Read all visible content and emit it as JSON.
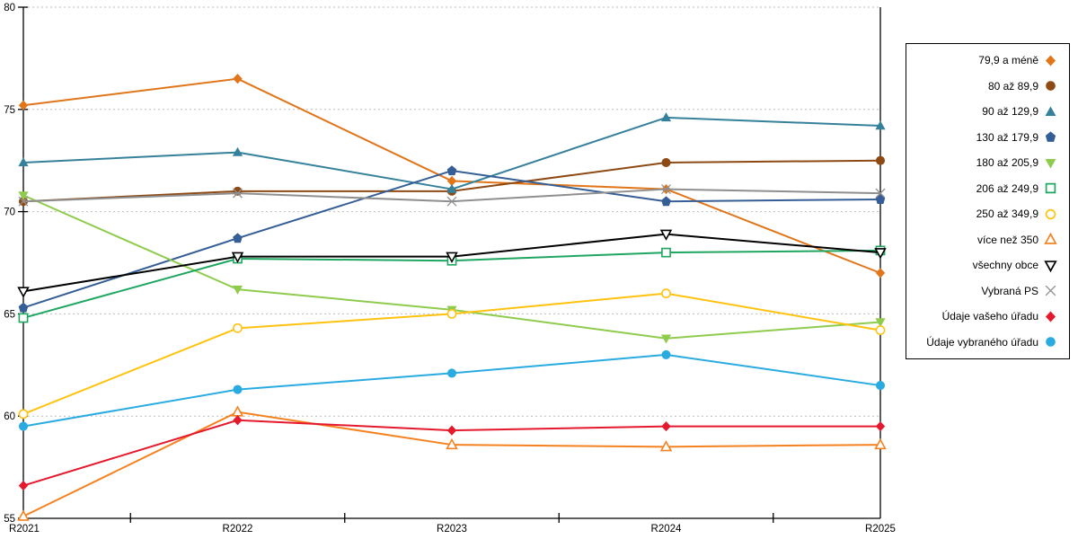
{
  "chart_data": {
    "type": "line",
    "title": "",
    "xlabel": "",
    "ylabel": "",
    "categories": [
      "R2021",
      "R2022",
      "R2023",
      "R2024",
      "R2025"
    ],
    "ylim": [
      55,
      80
    ],
    "yticks": [
      55,
      60,
      65,
      70,
      75,
      80
    ],
    "grid": "horizontal-dashed",
    "gridline_color": "#bdbdbd",
    "axis_color": "#000000",
    "legend_position": "right",
    "series": [
      {
        "name": "79,9 a méně",
        "color": "#e0751a",
        "marker": "diamond",
        "values": [
          75.2,
          76.5,
          71.5,
          71.1,
          67.0
        ]
      },
      {
        "name": "80 až 89,9",
        "color": "#8e4a15",
        "marker": "circle",
        "values": [
          70.5,
          71.0,
          71.0,
          72.4,
          72.5
        ]
      },
      {
        "name": "90 až 129,9",
        "color": "#35819b",
        "marker": "triangle-up",
        "values": [
          72.4,
          72.9,
          71.1,
          74.6,
          74.2
        ]
      },
      {
        "name": "130 až 179,9",
        "color": "#355e96",
        "marker": "pentagon",
        "values": [
          65.3,
          68.7,
          72.0,
          70.5,
          70.6
        ]
      },
      {
        "name": "180 až 205,9",
        "color": "#8fcb4c",
        "marker": "triangle-down",
        "values": [
          70.8,
          66.2,
          65.2,
          63.8,
          64.6
        ]
      },
      {
        "name": "206 až 249,9",
        "color": "#1fa661",
        "marker": "square-open",
        "values": [
          64.8,
          67.7,
          67.6,
          68.0,
          68.1
        ]
      },
      {
        "name": "250 až 349,9",
        "color": "#ffc20e",
        "marker": "circle-open",
        "values": [
          60.1,
          64.3,
          65.0,
          66.0,
          64.2
        ]
      },
      {
        "name": "více než 350",
        "color": "#f58220",
        "marker": "triangle-up-open",
        "values": [
          55.1,
          60.2,
          58.6,
          58.5,
          58.6
        ]
      },
      {
        "name": "všechny obce",
        "color": "#000000",
        "marker": "triangle-down-open",
        "values": [
          66.1,
          67.8,
          67.8,
          68.9,
          68.0
        ]
      },
      {
        "name": "Vybraná PS",
        "color": "#8f8f8f",
        "marker": "x",
        "values": [
          70.5,
          70.9,
          70.5,
          71.1,
          70.9
        ]
      },
      {
        "name": "Údaje vašeho úřadu",
        "color": "#e5192d",
        "marker": "diamond",
        "values": [
          56.6,
          59.8,
          59.3,
          59.5,
          59.5
        ]
      },
      {
        "name": "Údaje vybraného úřadu",
        "color": "#29abe2",
        "marker": "circle",
        "values": [
          59.5,
          61.3,
          62.1,
          63.0,
          61.5
        ]
      }
    ]
  }
}
